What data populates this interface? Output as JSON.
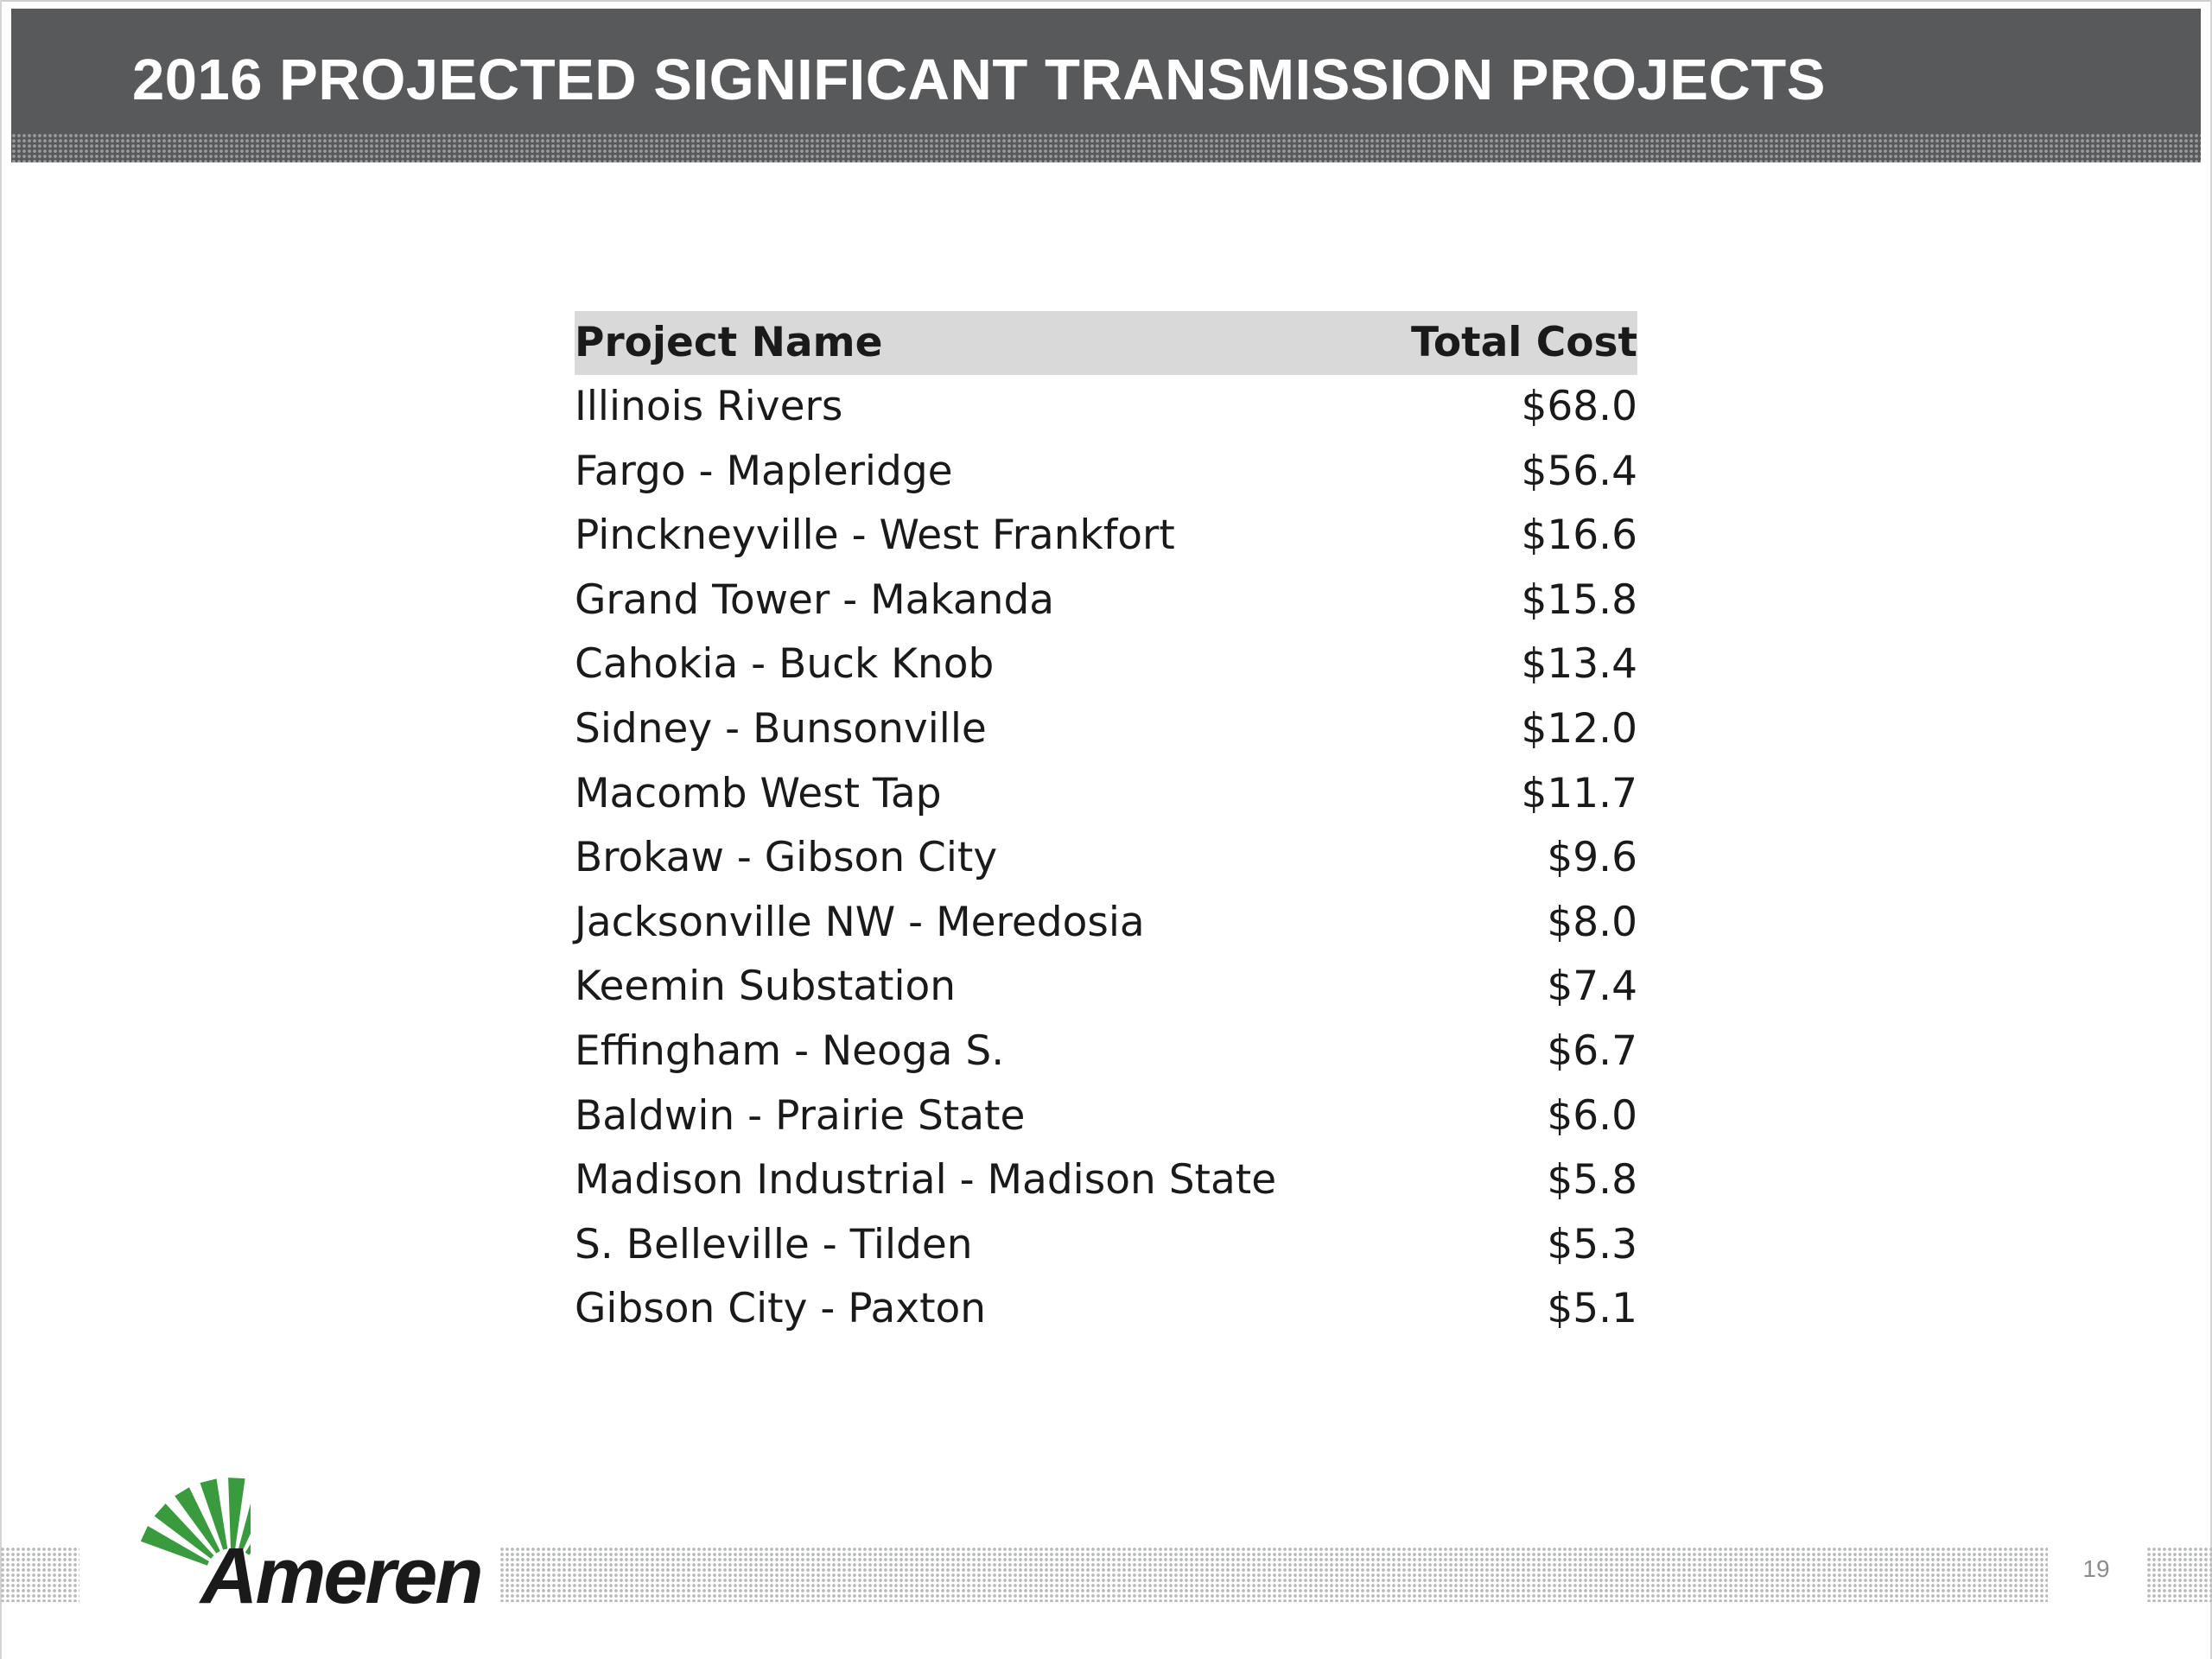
{
  "slide": {
    "title": "2016 PROJECTED SIGNIFICANT TRANSMISSION PROJECTS",
    "page_number": "19"
  },
  "table": {
    "headers": {
      "name": "Project Name",
      "cost": "Total Cost"
    },
    "rows": [
      {
        "name": "Illinois Rivers",
        "cost": "$68.0"
      },
      {
        "name": "Fargo - Mapleridge",
        "cost": "$56.4"
      },
      {
        "name": "Pinckneyville - West Frankfort",
        "cost": "$16.6"
      },
      {
        "name": "Grand Tower - Makanda",
        "cost": "$15.8"
      },
      {
        "name": "Cahokia - Buck Knob",
        "cost": "$13.4"
      },
      {
        "name": "Sidney - Bunsonville",
        "cost": "$12.0"
      },
      {
        "name": "Macomb West Tap",
        "cost": "$11.7"
      },
      {
        "name": "Brokaw - Gibson City",
        "cost": "$9.6"
      },
      {
        "name": "Jacksonville NW - Meredosia",
        "cost": "$8.0"
      },
      {
        "name": "Keemin Substation",
        "cost": "$7.4"
      },
      {
        "name": "Effingham - Neoga S.",
        "cost": "$6.7"
      },
      {
        "name": "Baldwin - Prairie State",
        "cost": "$6.0"
      },
      {
        "name": "Madison Industrial - Madison State",
        "cost": "$5.8"
      },
      {
        "name": "S. Belleville - Tilden",
        "cost": "$5.3"
      },
      {
        "name": "Gibson City - Paxton",
        "cost": "$5.1"
      }
    ]
  },
  "logo": {
    "wordmark": "Ameren",
    "icon": "ameren-sunburst-icon",
    "colors": {
      "green": "#3a9a3e",
      "red": "#e0312b",
      "text": "#1a1a1a"
    }
  },
  "colors": {
    "title_bar": "#58595b",
    "header_row": "#d9d9d9"
  }
}
